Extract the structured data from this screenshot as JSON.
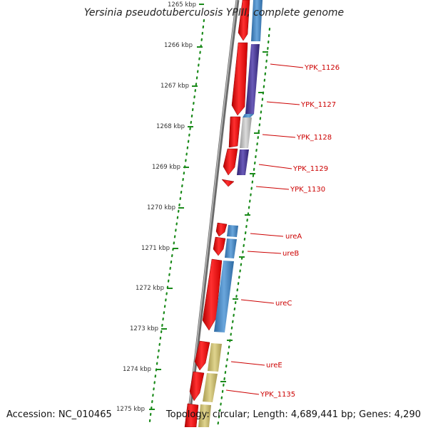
{
  "title": "Yersinia pseudotuberculosis YPIII, complete genome",
  "accession": "Accession: NC_010465",
  "topology": "Topology: circular; Length: 4,689,441 bp; Genes: 4,290",
  "ruler": [
    "1265 kbp",
    "1266 kbp",
    "1267 kbp",
    "1268 kbp",
    "1269 kbp",
    "1270 kbp",
    "1271 kbp",
    "1272 kbp",
    "1273 kbp",
    "1274 kbp",
    "1275 kbp"
  ],
  "genes": [
    "YPK_1126",
    "YPK_1127",
    "YPK_1128",
    "YPK_1129",
    "YPK_1130",
    "ureA",
    "ureB",
    "ureC",
    "ureE",
    "YPK_1135"
  ],
  "colors": {
    "cds": "#ff1a1a",
    "blue": "#4a86c0",
    "purple": "#4a3a98",
    "gray": "#b8b8b8",
    "olive": "#c8b86a",
    "tick": "#1a8a1a",
    "label": "#cc0000"
  }
}
